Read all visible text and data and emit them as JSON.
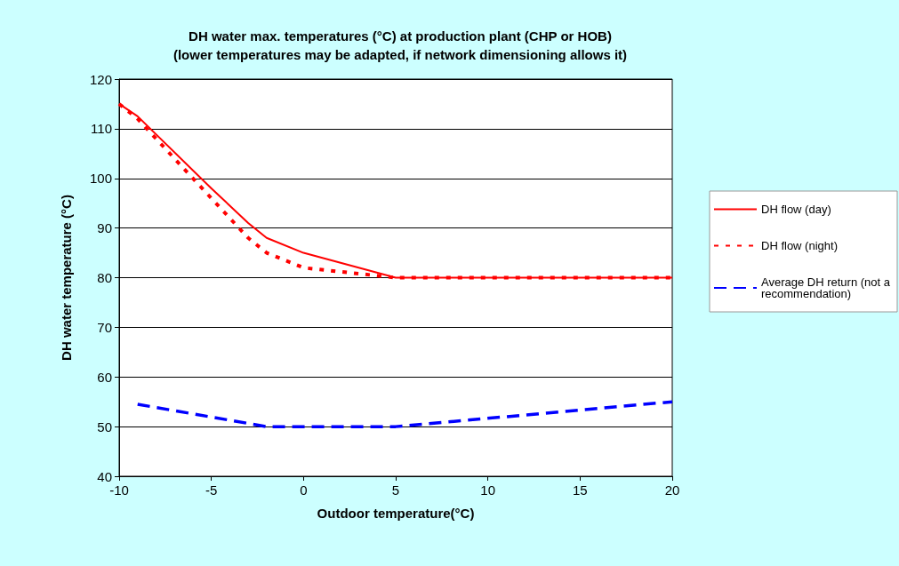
{
  "chart_data": {
    "type": "line",
    "title": "DH water max. temperatures (°C) at production plant (CHP or HOB)",
    "subtitle": "(lower temperatures may be adapted, if network dimensioning allows it)",
    "xlabel": "Outdoor temperature(°C)",
    "ylabel": "DH water temperature (°C)",
    "xlim": [
      -10,
      20
    ],
    "xticks": [
      -10,
      -5,
      0,
      5,
      10,
      15,
      20
    ],
    "ylim": [
      40,
      120
    ],
    "yticks": [
      40,
      50,
      60,
      70,
      80,
      90,
      100,
      110,
      120
    ],
    "grid": "y",
    "legend": "right",
    "marker": "none",
    "series": [
      {
        "name": "DH flow (day)",
        "color": "#ff0000",
        "line_style": "solid",
        "x": [
          -10,
          -9,
          -5,
          -3,
          -2,
          0,
          5,
          20
        ],
        "values": [
          115,
          112.5,
          98,
          91,
          88,
          85,
          80,
          80
        ]
      },
      {
        "name": "DH flow (night)",
        "color": "#ff0000",
        "line_style": "dotted",
        "x": [
          -10,
          -9,
          -5,
          -3,
          -2,
          0,
          5,
          20
        ],
        "values": [
          115,
          112,
          96,
          88,
          85,
          82,
          80,
          80
        ]
      },
      {
        "name": "Average DH return (not a recommendation)",
        "color": "#0000ff",
        "line_style": "dashed",
        "x": [
          -9,
          -2,
          5,
          20
        ],
        "values": [
          54.5,
          50,
          50,
          55
        ]
      }
    ]
  }
}
